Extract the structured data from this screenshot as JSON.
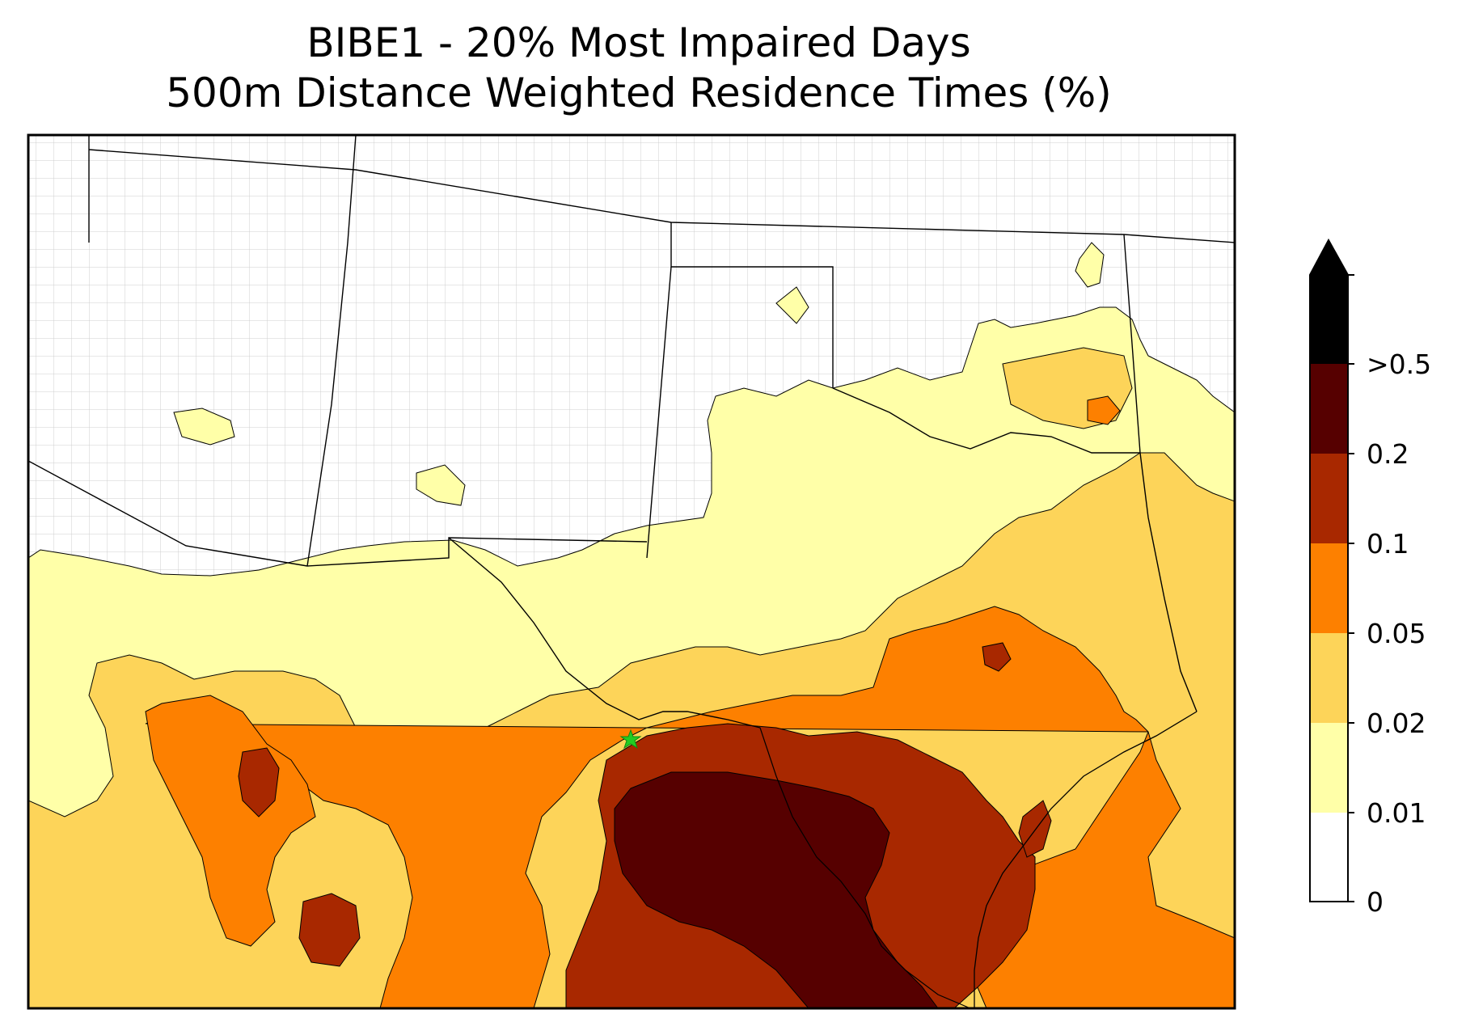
{
  "title": {
    "line1": "BIBE1 - 20% Most Impaired Days",
    "line2": "500m Distance Weighted Residence Times (%)"
  },
  "colorbar": {
    "labels": [
      ">0.5",
      "0.2",
      "0.1",
      "0.05",
      "0.02",
      "0.01",
      "0"
    ],
    "levels": [
      {
        "range": "0-0.01",
        "color": "#ffffff"
      },
      {
        "range": "0.01-0.02",
        "color": "#ffffa8"
      },
      {
        "range": "0.02-0.05",
        "color": "#fdd459"
      },
      {
        "range": "0.05-0.1",
        "color": "#fd8000"
      },
      {
        "range": "0.1-0.2",
        "color": "#a82800"
      },
      {
        "range": "0.2-0.5",
        "color": "#560000"
      },
      {
        "range": ">0.5",
        "color": "#000000"
      }
    ],
    "extend": "max"
  },
  "site_marker": {
    "symbol": "star",
    "color": "#22cc22"
  }
}
